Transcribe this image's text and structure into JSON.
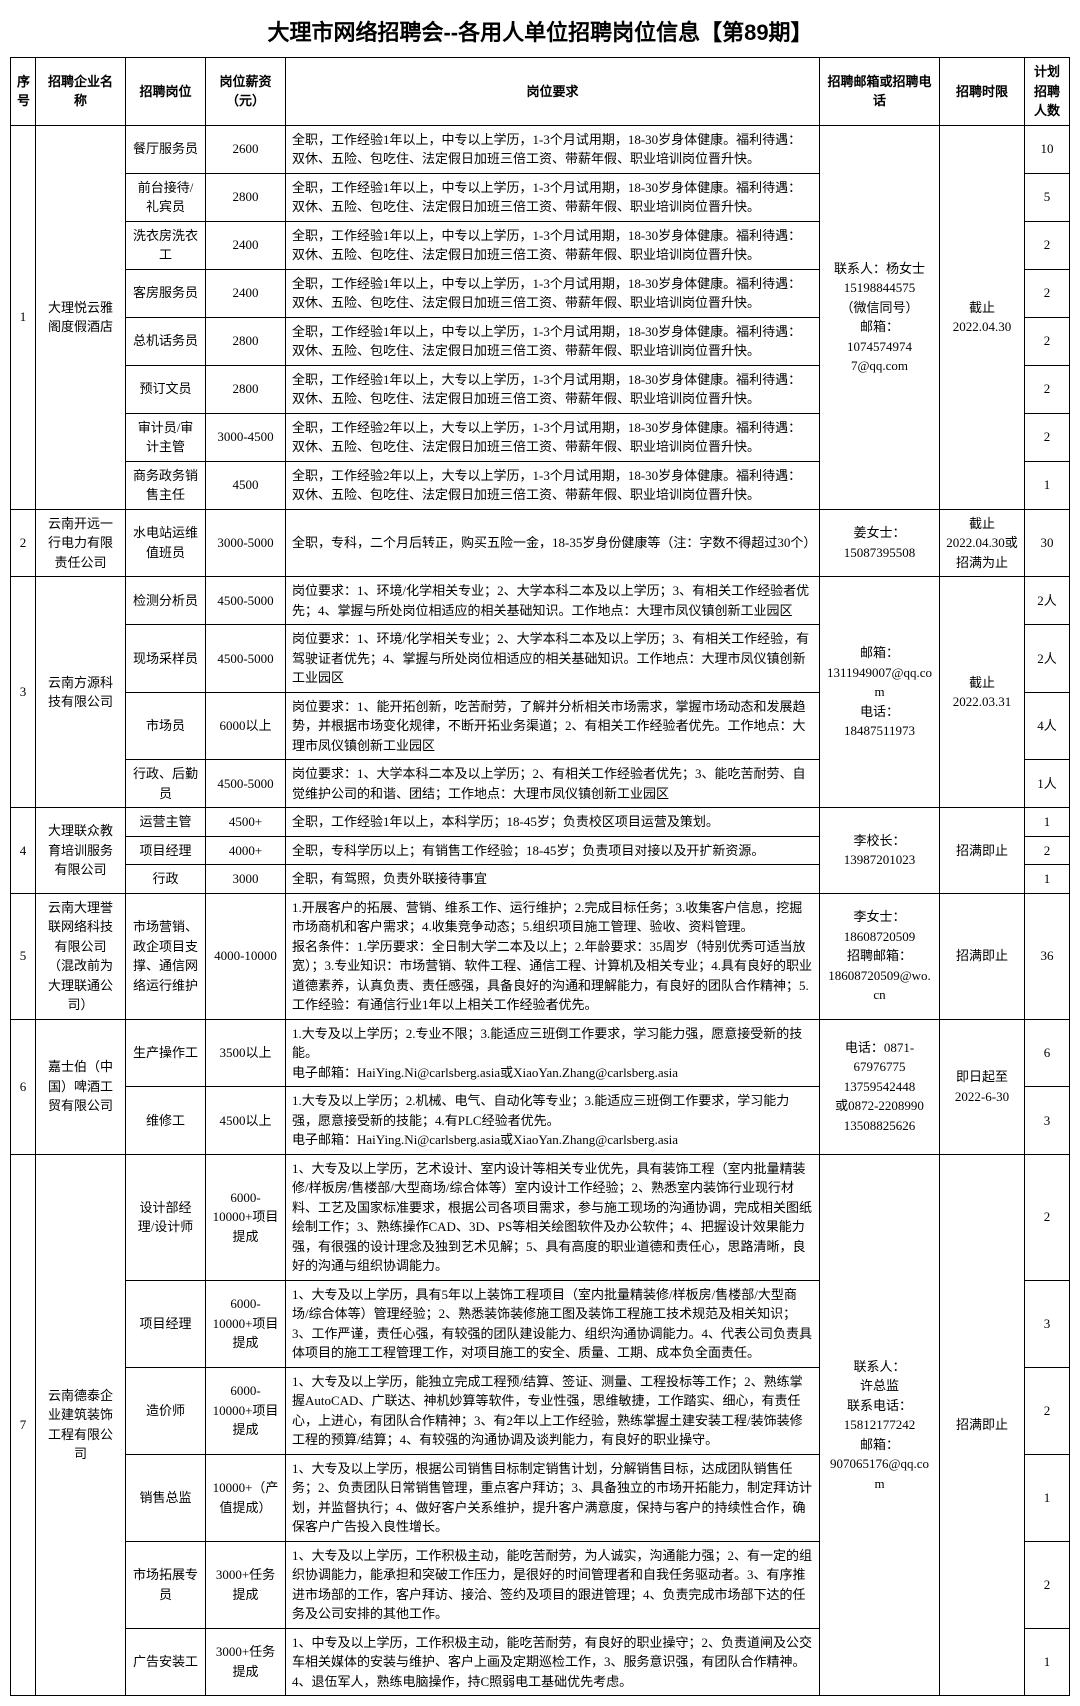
{
  "title": "大理市网络招聘会--各用人单位招聘岗位信息【第89期】",
  "headers": [
    "序号",
    "招聘企业名称",
    "招聘岗位",
    "岗位薪资（元）",
    "岗位要求",
    "招聘邮箱或招聘电话",
    "招聘时限",
    "计划招聘人数"
  ],
  "companies": [
    {
      "seq": "1",
      "name": "大理悦云雅阁度假酒店",
      "contact": "联系人：杨女士\n15198844575\n（微信同号）\n邮箱：\n1074574974 7@qq.com",
      "deadline": "截止2022.04.30",
      "jobs": [
        {
          "pos": "餐厅服务员",
          "sal": "2600",
          "req": "全职，工作经验1年以上，中专以上学历，1-3个月试用期，18-30岁身体健康。福利待遇：双休、五险、包吃住、法定假日加班三倍工资、带薪年假、职业培训岗位晋升快。",
          "cnt": "10"
        },
        {
          "pos": "前台接待/礼宾员",
          "sal": "2800",
          "req": "全职，工作经验1年以上，中专以上学历，1-3个月试用期，18-30岁身体健康。福利待遇：双休、五险、包吃住、法定假日加班三倍工资、带薪年假、职业培训岗位晋升快。",
          "cnt": "5"
        },
        {
          "pos": "洗衣房洗衣工",
          "sal": "2400",
          "req": "全职，工作经验1年以上，中专以上学历，1-3个月试用期，18-30岁身体健康。福利待遇：双休、五险、包吃住、法定假日加班三倍工资、带薪年假、职业培训岗位晋升快。",
          "cnt": "2"
        },
        {
          "pos": "客房服务员",
          "sal": "2400",
          "req": "全职，工作经验1年以上，中专以上学历，1-3个月试用期，18-30岁身体健康。福利待遇：双休、五险、包吃住、法定假日加班三倍工资、带薪年假、职业培训岗位晋升快。",
          "cnt": "2"
        },
        {
          "pos": "总机话务员",
          "sal": "2800",
          "req": "全职，工作经验1年以上，中专以上学历，1-3个月试用期，18-30岁身体健康。福利待遇：双休、五险、包吃住、法定假日加班三倍工资、带薪年假、职业培训岗位晋升快。",
          "cnt": "2"
        },
        {
          "pos": "预订文员",
          "sal": "2800",
          "req": "全职，工作经验1年以上，大专以上学历，1-3个月试用期，18-30岁身体健康。福利待遇：双休、五险、包吃住、法定假日加班三倍工资、带薪年假、职业培训岗位晋升快。",
          "cnt": "2"
        },
        {
          "pos": "审计员/审计主管",
          "sal": "3000-4500",
          "req": "全职，工作经验2年以上，大专以上学历，1-3个月试用期，18-30岁身体健康。福利待遇：双休、五险、包吃住、法定假日加班三倍工资、带薪年假、职业培训岗位晋升快。",
          "cnt": "2"
        },
        {
          "pos": "商务政务销售主任",
          "sal": "4500",
          "req": "全职，工作经验2年以上，大专以上学历，1-3个月试用期，18-30岁身体健康。福利待遇：双休、五险、包吃住、法定假日加班三倍工资、带薪年假、职业培训岗位晋升快。",
          "cnt": "1"
        }
      ]
    },
    {
      "seq": "2",
      "name": "云南开远一行电力有限责任公司",
      "contact": "姜女士：15087395508",
      "deadline": "截止2022.04.30或招满为止",
      "jobs": [
        {
          "pos": "水电站运维值班员",
          "sal": "3000-5000",
          "req": "全职，专科，二个月后转正，购买五险一金，18-35岁身份健康等（注：字数不得超过30个）",
          "cnt": "30"
        }
      ]
    },
    {
      "seq": "3",
      "name": "云南方源科技有限公司",
      "contact": "邮箱：1311949007@qq.com\n电话：18487511973",
      "deadline": "截止2022.03.31",
      "jobs": [
        {
          "pos": "检测分析员",
          "sal": "4500-5000",
          "req": "岗位要求：1、环境/化学相关专业；2、大学本科二本及以上学历；3、有相关工作经验者优先；4、掌握与所处岗位相适应的相关基础知识。工作地点：大理市凤仪镇创新工业园区",
          "cnt": "2人"
        },
        {
          "pos": "现场采样员",
          "sal": "4500-5000",
          "req": "岗位要求：1、环境/化学相关专业；2、大学本科二本及以上学历；3、有相关工作经验，有驾驶证者优先；4、掌握与所处岗位相适应的相关基础知识。工作地点：大理市凤仪镇创新工业园区",
          "cnt": "2人"
        },
        {
          "pos": "市场员",
          "sal": "6000以上",
          "req": "岗位要求：1、能开拓创新，吃苦耐劳，了解并分析相关市场需求，掌握市场动态和发展趋势，并根据市场变化规律，不断开拓业务渠道；2、有相关工作经验者优先。工作地点：大理市凤仪镇创新工业园区",
          "cnt": "4人"
        },
        {
          "pos": "行政、后勤员",
          "sal": "4500-5000",
          "req": "岗位要求：1、大学本科二本及以上学历；2、有相关工作经验者优先；3、能吃苦耐劳、自觉维护公司的和谐、团结；工作地点：大理市凤仪镇创新工业园区",
          "cnt": "1人"
        }
      ]
    },
    {
      "seq": "4",
      "name": "大理联众教育培训服务有限公司",
      "contact": "李校长：13987201023",
      "deadline": "招满即止",
      "jobs": [
        {
          "pos": "运营主管",
          "sal": "4500+",
          "req": "全职，工作经验1年以上，本科学历；18-45岁；负责校区项目运营及策划。",
          "cnt": "1"
        },
        {
          "pos": "项目经理",
          "sal": "4000+",
          "req": "全职，专科学历以上；有销售工作经验；18-45岁；负责项目对接以及开扩新资源。",
          "cnt": "2"
        },
        {
          "pos": "行政",
          "sal": "3000",
          "req": "全职，有驾照，负责外联接待事宜",
          "cnt": "1"
        }
      ]
    },
    {
      "seq": "5",
      "name": "云南大理誉联网络科技有限公司（混改前为大理联通公司）",
      "contact": "李女士：18608720509\n招聘邮箱：18608720509@wo.cn",
      "deadline": "招满即止",
      "jobs": [
        {
          "pos": "市场营销、政企项目支撑、通信网络运行维护",
          "sal": "4000-10000",
          "req": "1.开展客户的拓展、营销、维系工作、运行维护；2.完成目标任务；3.收集客户信息，挖掘市场商机和客户需求；4.收集竞争动态；5.组织项目施工管理、验收、资料管理。\n报名条件：1.学历要求：全日制大学二本及以上；2.年龄要求：35周岁（特别优秀可适当放宽）；3.专业知识：市场营销、软件工程、通信工程、计算机及相关专业；4.具有良好的职业道德素养，认真负责、责任感强，具备良好的沟通和理解能力，有良好的团队合作精神；5.工作经验：有通信行业1年以上相关工作经验者优先。",
          "cnt": "36"
        }
      ]
    },
    {
      "seq": "6",
      "name": "嘉士伯（中国）啤酒工贸有限公司",
      "contact": "电话：0871-67976775\n13759542448\n或0872-2208990\n13508825626",
      "deadline": "即日起至2022-6-30",
      "jobs": [
        {
          "pos": "生产操作工",
          "sal": "3500以上",
          "req": "1.大专及以上学历；2.专业不限；3.能适应三班倒工作要求，学习能力强，愿意接受新的技能。\n电子邮箱：HaiYing.Ni@carlsberg.asia或XiaoYan.Zhang@carlsberg.asia",
          "cnt": "6"
        },
        {
          "pos": "维修工",
          "sal": "4500以上",
          "req": "1.大专及以上学历；2.机械、电气、自动化等专业；3.能适应三班倒工作要求，学习能力强，愿意接受新的技能；4.有PLC经验者优先。\n电子邮箱：HaiYing.Ni@carlsberg.asia或XiaoYan.Zhang@carlsberg.asia",
          "cnt": "3"
        }
      ]
    },
    {
      "seq": "7",
      "name": "云南德泰企业建筑装饰工程有限公司",
      "contact": "联系人：\n许总监\n联系电话：15812177242\n邮箱：907065176@qq.com",
      "deadline": "招满即止",
      "jobs": [
        {
          "pos": "设计部经理/设计师",
          "sal": "6000-10000+项目提成",
          "req": "1、大专及以上学历，艺术设计、室内设计等相关专业优先，具有装饰工程（室内批量精装修/样板房/售楼部/大型商场/综合体等）室内设计工作经验；2、熟悉室内装饰行业现行材料、工艺及国家标准要求，根据公司各项目需求，参与施工现场的沟通协调，完成相关图纸绘制工作；3、熟练操作CAD、3D、PS等相关绘图软件及办公软件；4、把握设计效果能力强，有很强的设计理念及独到艺术见解；5、具有高度的职业道德和责任心，思路清晰，良好的沟通与组织协调能力。",
          "cnt": "2"
        },
        {
          "pos": "项目经理",
          "sal": "6000-10000+项目提成",
          "req": "1、大专及以上学历，具有5年以上装饰工程项目（室内批量精装修/样板房/售楼部/大型商场/综合体等）管理经验；2、熟悉装饰装修施工图及装饰工程施工技术规范及相关知识；3、工作严谨，责任心强，有较强的团队建设能力、组织沟通协调能力。4、代表公司负责具体项目的施工工程管理工作，对项目施工的安全、质量、工期、成本负全面责任。",
          "cnt": "3"
        },
        {
          "pos": "造价师",
          "sal": "6000-10000+项目提成",
          "req": "1、大专及以上学历，能独立完成工程预/结算、签证、测量、工程投标等工作；2、熟练掌握AutoCAD、广联达、神机妙算等软件，专业性强，思维敏捷，工作踏实、细心，有责任心，上进心，有团队合作精神；3、有2年以上工作经验，熟练掌握土建安装工程/装饰装修工程的预算/结算；4、有较强的沟通协调及谈判能力，有良好的职业操守。",
          "cnt": "2"
        },
        {
          "pos": "销售总监",
          "sal": "10000+（产值提成）",
          "req": "1、大专及以上学历，根据公司销售目标制定销售计划，分解销售目标，达成团队销售任务；2、负责团队日常销售管理，重点客户拜访；3、具备独立的市场开拓能力，制定拜访计划，并监督执行；4、做好客户关系维护，提升客户满意度，保持与客户的持续性合作，确保客户广告投入良性增长。",
          "cnt": "1"
        },
        {
          "pos": "市场拓展专员",
          "sal": "3000+任务提成",
          "req": "1、大专及以上学历，工作积极主动，能吃苦耐劳，为人诚实，沟通能力强；2、有一定的组织协调能力，能承担和突破工作压力，是很好的时间管理者和自我任务驱动者。3、有序推进市场部的工作，客户拜访、接洽、签约及项目的跟进管理；4、负责完成市场部下达的任务及公司安排的其他工作。",
          "cnt": "2"
        },
        {
          "pos": "广告安装工",
          "sal": "3000+任务提成",
          "req": "1、中专及以上学历，工作积极主动，能吃苦耐劳，有良好的职业操守；2、负责道闸及公交车相关媒体的安装与维护、客户上画及定期巡检工作，3、服务意识强，有团队合作精神。4、退伍军人，熟练电脑操作，持C照弱电工基础优先考虑。",
          "cnt": "1"
        }
      ]
    }
  ]
}
